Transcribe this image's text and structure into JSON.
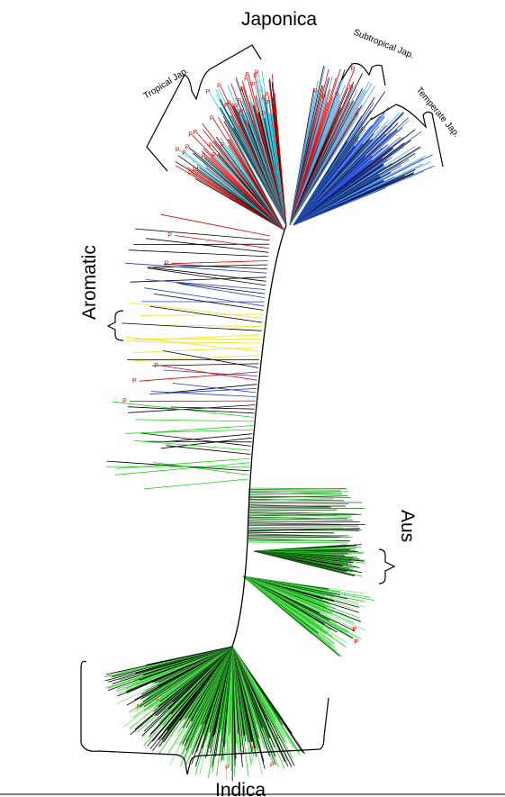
{
  "clades": {
    "japonica": "Japonica",
    "tropical": "Tropical Jap.",
    "subtropical": "Subtropical Jap.",
    "temperate": "Temperate Jap.",
    "aromatic": "Aromatic",
    "aus": "Aus",
    "indica": "Indica"
  },
  "marker": "P",
  "colors": {
    "tropical_japonica": "#27c9e6",
    "temperate_japonica": "#1f3fd6",
    "subtropical_japonica": "#4aa0e6",
    "aromatic": "#f2e21a",
    "aus": "#1b5e1b",
    "indica": "#22d122",
    "indica_light": "#7ee37e",
    "red_branch": "#e00000",
    "admixed": "#000000"
  }
}
